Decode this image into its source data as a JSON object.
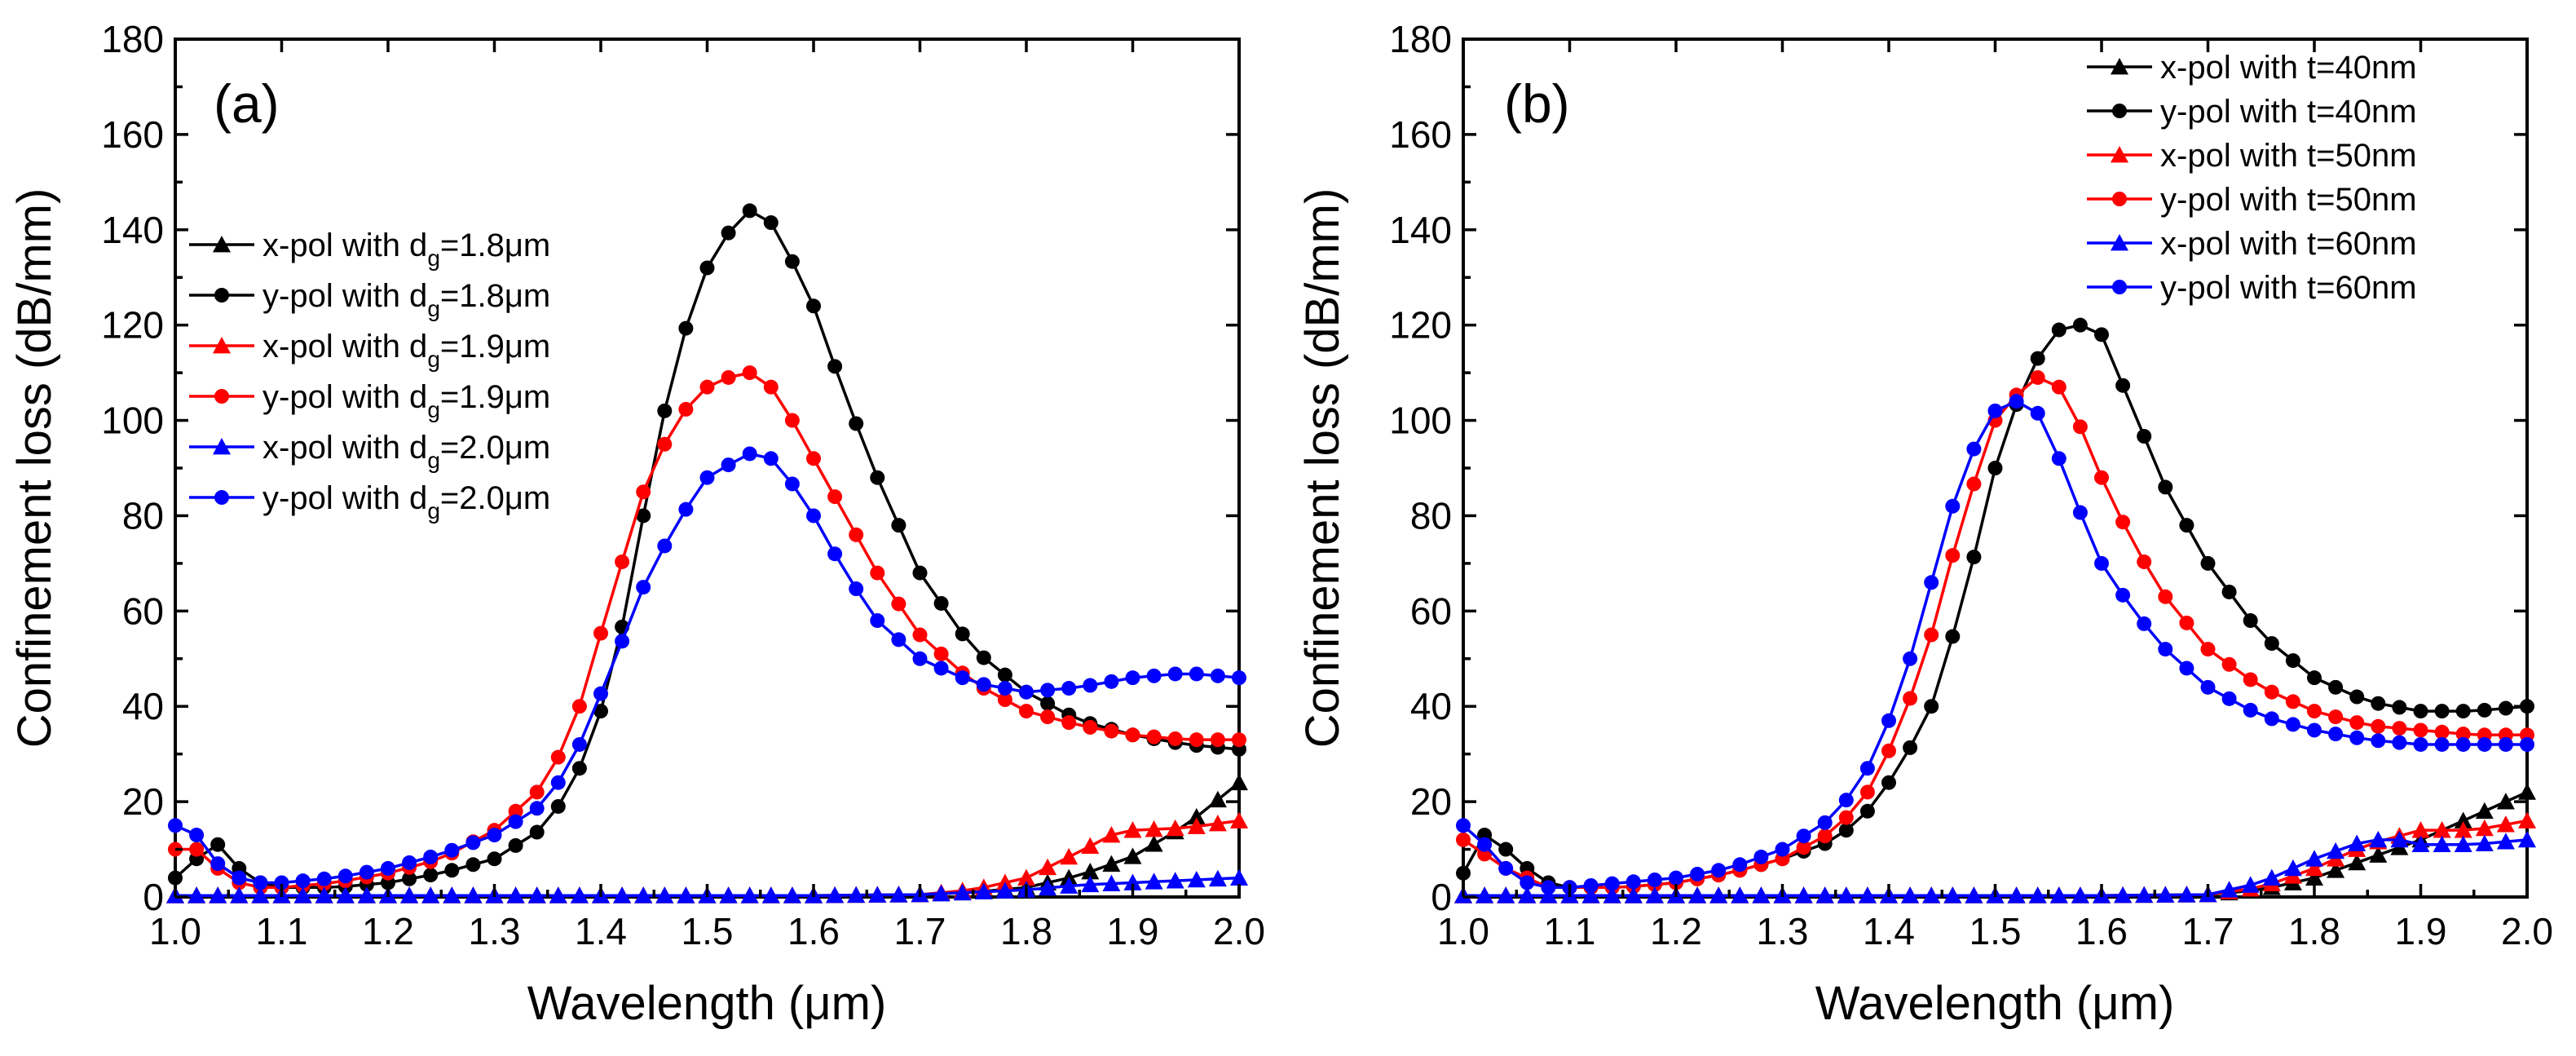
{
  "chart_data": [
    {
      "type": "line",
      "panel_label": "(a)",
      "xlabel": "Wavelength (μm)",
      "ylabel": "Confinement loss (dB/mm)",
      "xlim": [
        1.0,
        2.0
      ],
      "ylim": [
        0,
        180
      ],
      "xticks": [
        "1.0",
        "1.1",
        "1.2",
        "1.3",
        "1.4",
        "1.5",
        "1.6",
        "1.7",
        "1.8",
        "1.9",
        "2.0"
      ],
      "yticks": [
        "0",
        "20",
        "40",
        "60",
        "80",
        "100",
        "120",
        "140",
        "160",
        "180"
      ],
      "legend_position": "center-left",
      "series": [
        {
          "label_pre": "x-pol with d",
          "label_sub": "g",
          "label_post": "=1.8μm",
          "color": "#000000",
          "marker": "triangle",
          "x": [
            1.0,
            1.1,
            1.2,
            1.3,
            1.4,
            1.5,
            1.6,
            1.7,
            1.75,
            1.8,
            1.85,
            1.9,
            1.95,
            2.0
          ],
          "y": [
            0.3,
            0.3,
            0.3,
            0.3,
            0.3,
            0.3,
            0.3,
            0.5,
            1.0,
            2.0,
            4.5,
            8.5,
            15,
            24
          ]
        },
        {
          "label_pre": "y-pol with d",
          "label_sub": "g",
          "label_post": "=1.8μm",
          "color": "#000000",
          "marker": "circle",
          "x": [
            1.0,
            1.02,
            1.04,
            1.06,
            1.08,
            1.1,
            1.15,
            1.2,
            1.25,
            1.3,
            1.35,
            1.38,
            1.41,
            1.44,
            1.47,
            1.5,
            1.53,
            1.55,
            1.57,
            1.6,
            1.63,
            1.66,
            1.7,
            1.75,
            1.8,
            1.85,
            1.9,
            1.95,
            2.0
          ],
          "y": [
            4,
            8,
            11,
            6,
            3,
            2,
            2,
            3,
            5,
            8,
            15,
            27,
            45,
            80,
            113,
            132,
            143,
            145,
            138,
            124,
            105,
            88,
            68,
            52,
            43,
            37,
            34,
            32,
            31
          ]
        },
        {
          "label_pre": "x-pol with d",
          "label_sub": "g",
          "label_post": "=1.9μm",
          "color": "#ff0000",
          "marker": "triangle",
          "x": [
            1.0,
            1.1,
            1.2,
            1.3,
            1.4,
            1.5,
            1.6,
            1.7,
            1.75,
            1.8,
            1.85,
            1.88,
            1.9,
            1.95,
            2.0
          ],
          "y": [
            0.3,
            0.3,
            0.3,
            0.3,
            0.3,
            0.3,
            0.3,
            0.5,
            1.5,
            4,
            9.5,
            13,
            14,
            14.5,
            16
          ]
        },
        {
          "label_pre": "y-pol with d",
          "label_sub": "g",
          "label_post": "=1.9μm",
          "color": "#ff0000",
          "marker": "circle",
          "x": [
            1.0,
            1.01,
            1.02,
            1.04,
            1.06,
            1.08,
            1.1,
            1.15,
            1.2,
            1.25,
            1.3,
            1.35,
            1.38,
            1.41,
            1.44,
            1.47,
            1.5,
            1.53,
            1.55,
            1.57,
            1.6,
            1.63,
            1.66,
            1.7,
            1.75,
            1.8,
            1.85,
            1.9,
            1.95,
            2.0
          ],
          "y": [
            10,
            14,
            10,
            6,
            3,
            2,
            2,
            3,
            5,
            8,
            14,
            24,
            40,
            63,
            85,
            100,
            107,
            110,
            110,
            104,
            92,
            80,
            68,
            55,
            45,
            39,
            36,
            34,
            33,
            33
          ]
        },
        {
          "label_pre": "x-pol with d",
          "label_sub": "g",
          "label_post": "=2.0μm",
          "color": "#0000ff",
          "marker": "triangle",
          "x": [
            1.0,
            1.1,
            1.2,
            1.3,
            1.4,
            1.5,
            1.6,
            1.7,
            1.8,
            1.85,
            1.9,
            1.95,
            2.0
          ],
          "y": [
            0.3,
            0.3,
            0.3,
            0.3,
            0.3,
            0.3,
            0.3,
            0.5,
            1.5,
            2.5,
            3,
            3.5,
            4
          ]
        },
        {
          "label_pre": "y-pol with d",
          "label_sub": "g",
          "label_post": "=2.0μm",
          "color": "#0000ff",
          "marker": "circle",
          "x": [
            1.0,
            1.01,
            1.02,
            1.04,
            1.06,
            1.08,
            1.1,
            1.15,
            1.2,
            1.25,
            1.3,
            1.35,
            1.38,
            1.41,
            1.44,
            1.47,
            1.5,
            1.53,
            1.55,
            1.57,
            1.6,
            1.63,
            1.66,
            1.7,
            1.75,
            1.8,
            1.85,
            1.9,
            1.95,
            2.0
          ],
          "y": [
            15,
            19,
            13,
            7,
            4,
            3,
            3,
            4,
            6,
            9,
            13,
            20,
            32,
            48,
            65,
            78,
            88,
            92,
            94,
            90,
            80,
            68,
            58,
            50,
            45,
            43,
            44,
            46,
            47,
            46
          ]
        }
      ]
    },
    {
      "type": "line",
      "panel_label": "(b)",
      "xlabel": "Wavelength (μm)",
      "ylabel": "Confinement loss (dB/mm)",
      "xlim": [
        1.0,
        2.0
      ],
      "ylim": [
        0,
        180
      ],
      "xticks": [
        "1.0",
        "1.1",
        "1.2",
        "1.3",
        "1.4",
        "1.5",
        "1.6",
        "1.7",
        "1.8",
        "1.9",
        "2.0"
      ],
      "yticks": [
        "0",
        "20",
        "40",
        "60",
        "80",
        "100",
        "120",
        "140",
        "160",
        "180"
      ],
      "legend_position": "top-right",
      "series": [
        {
          "label": "x-pol with t=40nm",
          "color": "#000000",
          "marker": "triangle",
          "x": [
            1.0,
            1.1,
            1.2,
            1.3,
            1.4,
            1.5,
            1.6,
            1.7,
            1.75,
            1.8,
            1.85,
            1.9,
            1.95,
            2.0
          ],
          "y": [
            0.3,
            0.3,
            0.3,
            0.3,
            0.3,
            0.3,
            0.3,
            0.5,
            1.5,
            4,
            8,
            12,
            17,
            22
          ]
        },
        {
          "label": "y-pol with t=40nm",
          "color": "#000000",
          "marker": "circle",
          "x": [
            1.0,
            1.02,
            1.04,
            1.06,
            1.08,
            1.1,
            1.15,
            1.2,
            1.25,
            1.3,
            1.35,
            1.38,
            1.41,
            1.44,
            1.47,
            1.5,
            1.53,
            1.56,
            1.58,
            1.6,
            1.63,
            1.66,
            1.7,
            1.75,
            1.8,
            1.85,
            1.9,
            1.95,
            2.0
          ],
          "y": [
            5,
            13,
            10,
            6,
            3,
            2,
            2,
            3,
            5,
            8,
            12,
            18,
            27,
            40,
            62,
            90,
            110,
            119,
            120,
            118,
            102,
            86,
            70,
            55,
            46,
            41,
            39,
            39,
            40
          ]
        },
        {
          "label": "x-pol with t=50nm",
          "color": "#ff0000",
          "marker": "triangle",
          "x": [
            1.0,
            1.1,
            1.2,
            1.3,
            1.4,
            1.5,
            1.6,
            1.7,
            1.75,
            1.8,
            1.85,
            1.9,
            1.95,
            2.0
          ],
          "y": [
            0.3,
            0.3,
            0.3,
            0.3,
            0.3,
            0.3,
            0.3,
            0.5,
            2,
            6,
            11,
            14,
            14,
            16
          ]
        },
        {
          "label": "y-pol with t=50nm",
          "color": "#ff0000",
          "marker": "circle",
          "x": [
            1.0,
            1.02,
            1.04,
            1.06,
            1.08,
            1.1,
            1.15,
            1.2,
            1.25,
            1.3,
            1.35,
            1.38,
            1.41,
            1.44,
            1.47,
            1.5,
            1.53,
            1.55,
            1.57,
            1.6,
            1.63,
            1.66,
            1.7,
            1.75,
            1.8,
            1.85,
            1.9,
            1.95,
            2.0
          ],
          "y": [
            12,
            9,
            6,
            4,
            2,
            2,
            2,
            3,
            5,
            8,
            14,
            22,
            35,
            55,
            80,
            100,
            108,
            110,
            104,
            88,
            74,
            63,
            52,
            44,
            39,
            36,
            35,
            34,
            34
          ]
        },
        {
          "label": "x-pol with t=60nm",
          "color": "#0000ff",
          "marker": "triangle",
          "x": [
            1.0,
            1.1,
            1.2,
            1.3,
            1.4,
            1.5,
            1.6,
            1.7,
            1.75,
            1.8,
            1.85,
            1.88,
            1.9,
            1.95,
            2.0
          ],
          "y": [
            0.3,
            0.3,
            0.3,
            0.3,
            0.3,
            0.3,
            0.3,
            0.5,
            3,
            8,
            12,
            12,
            11,
            11,
            12
          ]
        },
        {
          "label": "y-pol with t=60nm",
          "color": "#0000ff",
          "marker": "circle",
          "x": [
            1.0,
            1.02,
            1.04,
            1.06,
            1.08,
            1.1,
            1.15,
            1.2,
            1.25,
            1.3,
            1.35,
            1.38,
            1.41,
            1.44,
            1.47,
            1.5,
            1.52,
            1.53,
            1.55,
            1.57,
            1.6,
            1.63,
            1.66,
            1.7,
            1.75,
            1.8,
            1.85,
            1.9,
            1.95,
            2.0
          ],
          "y": [
            15,
            11,
            6,
            3,
            2,
            2,
            3,
            4,
            6,
            10,
            17,
            27,
            42,
            66,
            90,
            102,
            104,
            105,
            98,
            86,
            70,
            60,
            52,
            44,
            38,
            35,
            33,
            32,
            32,
            32
          ]
        }
      ]
    }
  ]
}
